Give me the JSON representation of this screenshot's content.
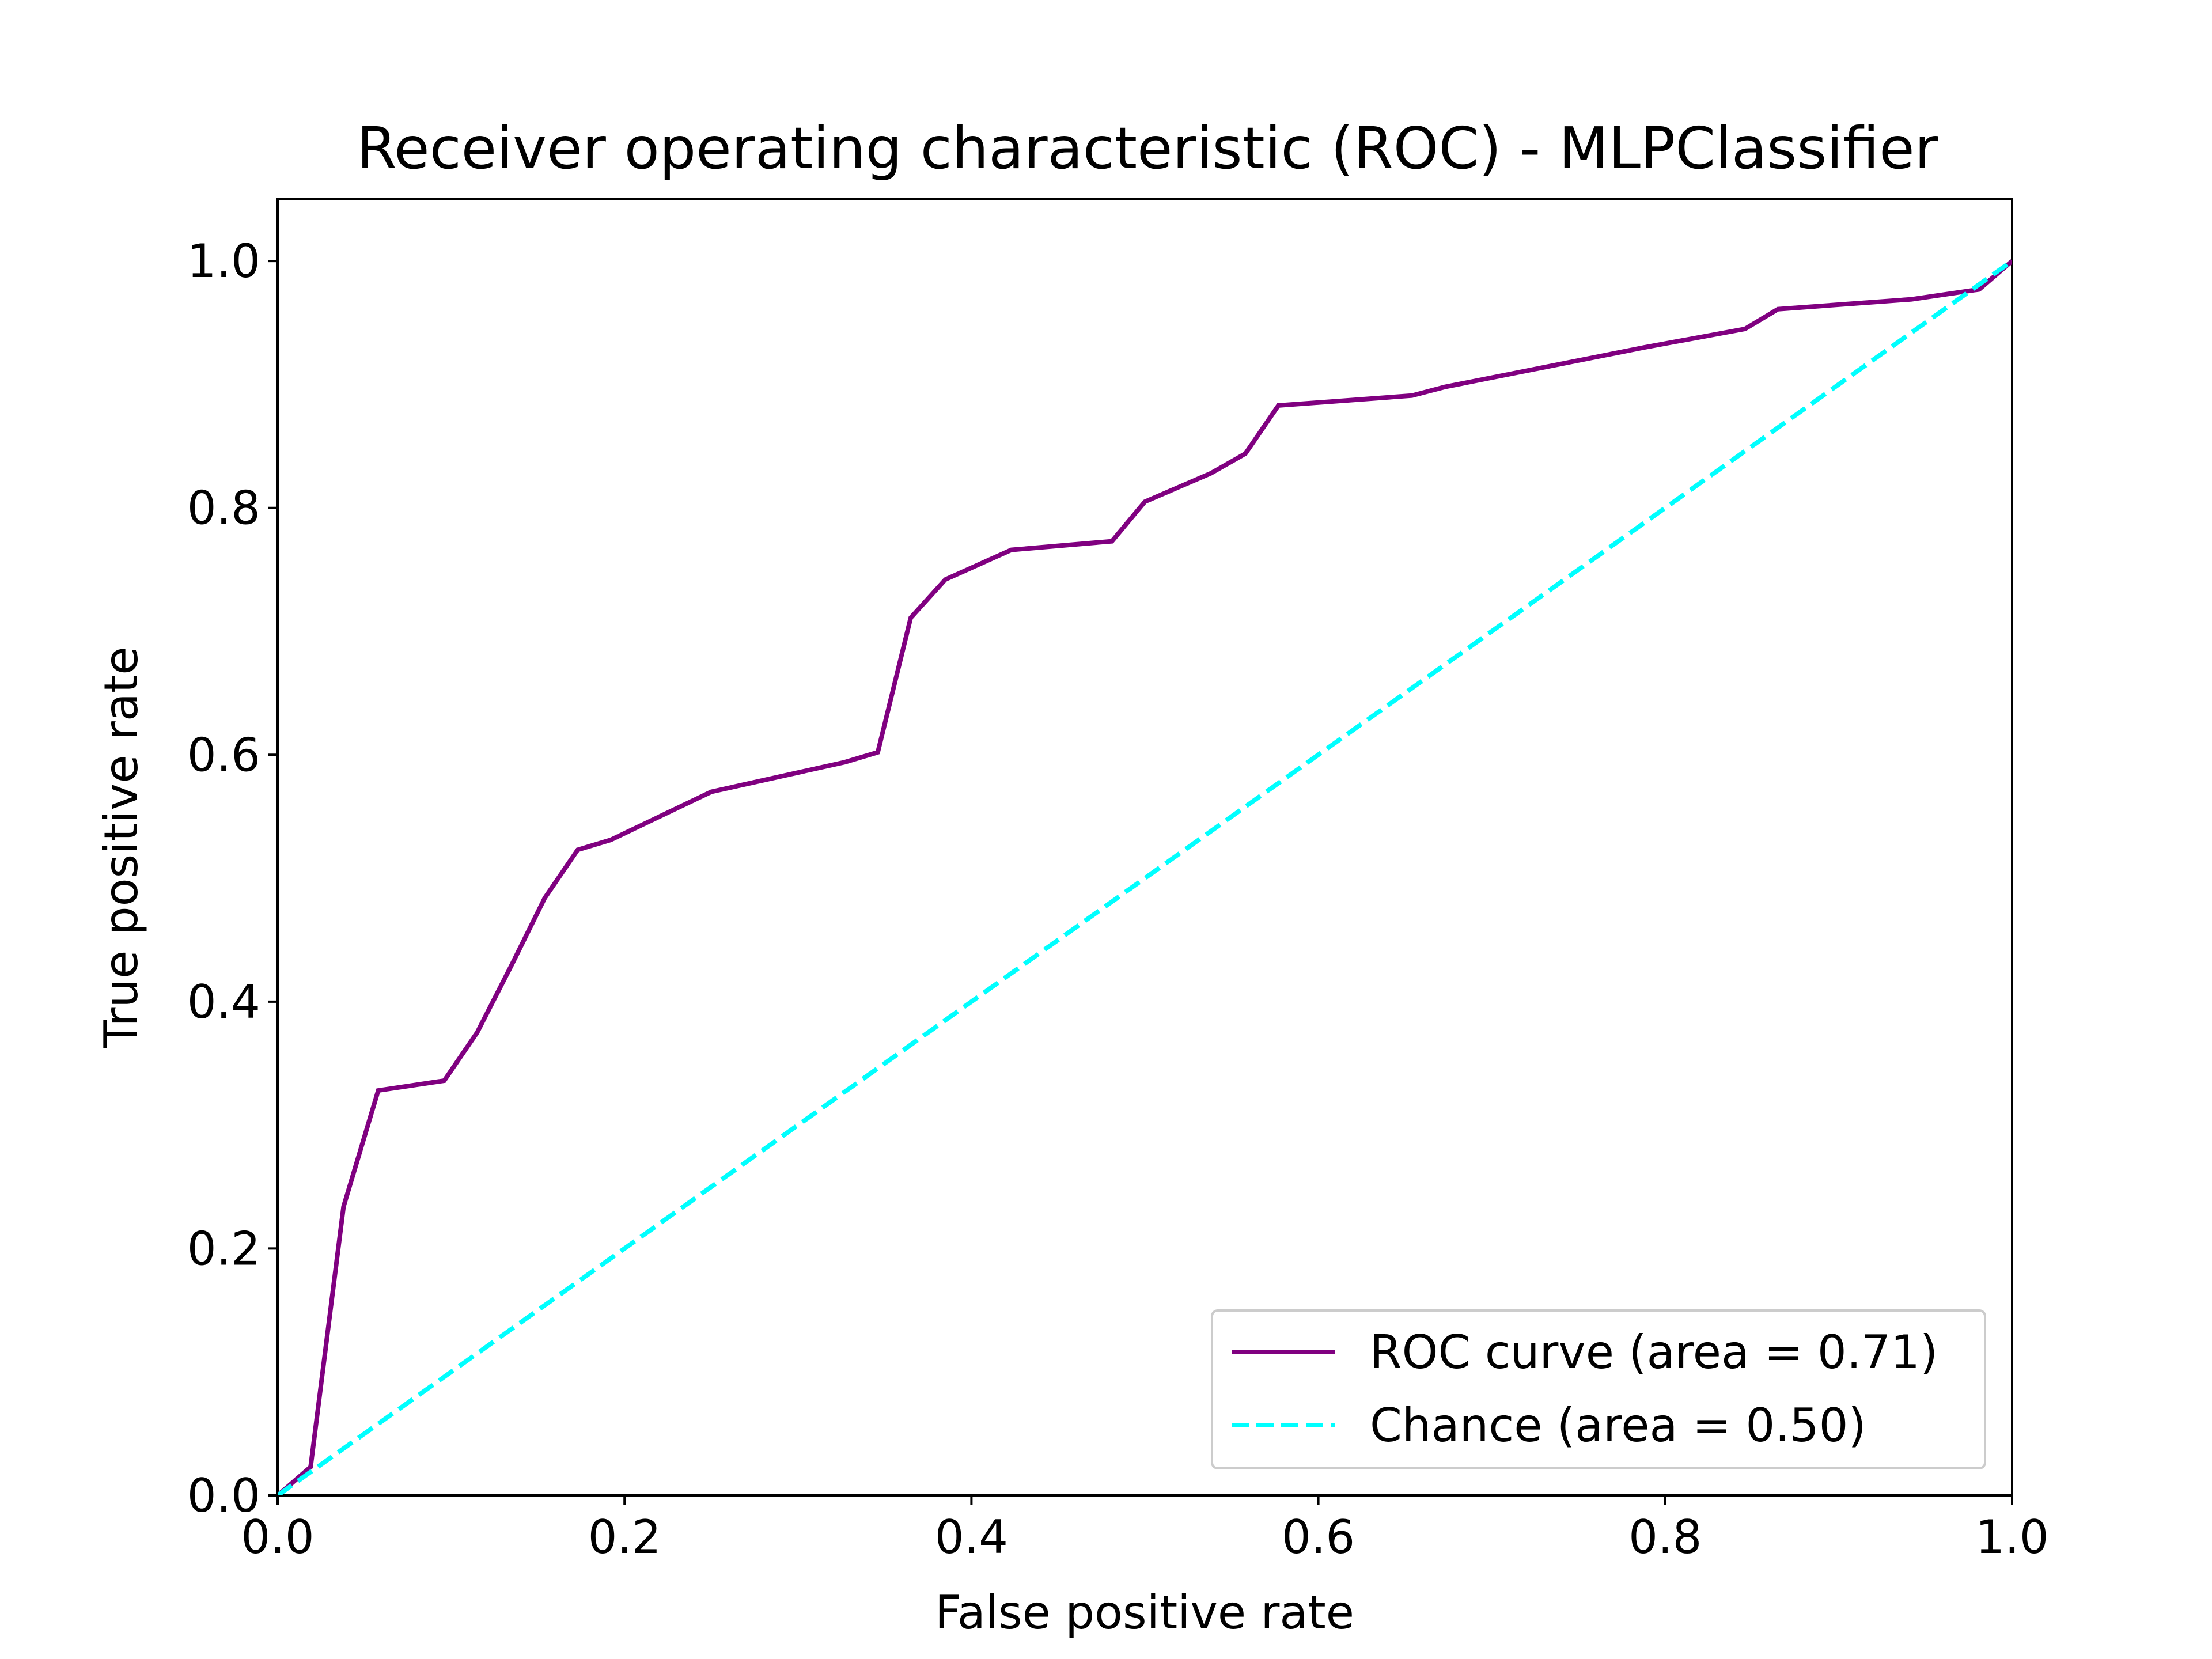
{
  "chart_data": {
    "type": "line",
    "title": "Receiver operating characteristic (ROC) - MLPClassifier",
    "xlabel": "False positive rate",
    "ylabel": "True positive rate",
    "xlim": [
      0.0,
      1.0
    ],
    "ylim": [
      0.0,
      1.05
    ],
    "xticks": [
      "0.0",
      "0.2",
      "0.4",
      "0.6",
      "0.8",
      "1.0"
    ],
    "yticks": [
      "0.0",
      "0.2",
      "0.4",
      "0.6",
      "0.8",
      "1.0"
    ],
    "grid": false,
    "legend_position": "lower right",
    "series": [
      {
        "name": "ROC curve (area = 0.71)",
        "color": "#800080",
        "line_style": "solid",
        "step": true,
        "x": [
          0.0,
          0.019,
          0.019,
          0.038,
          0.038,
          0.058,
          0.058,
          0.096,
          0.096,
          0.115,
          0.115,
          0.135,
          0.135,
          0.154,
          0.154,
          0.173,
          0.173,
          0.192,
          0.192,
          0.25,
          0.25,
          0.327,
          0.327,
          0.346,
          0.346,
          0.365,
          0.365,
          0.385,
          0.385,
          0.423,
          0.423,
          0.481,
          0.481,
          0.5,
          0.5,
          0.538,
          0.538,
          0.558,
          0.558,
          0.577,
          0.577,
          0.654,
          0.654,
          0.673,
          0.673,
          0.788,
          0.788,
          0.846,
          0.846,
          0.865,
          0.865,
          0.942,
          0.942,
          0.981,
          0.981,
          1.0
        ],
        "y": [
          0.0,
          0.023,
          0.023,
          0.234,
          0.234,
          0.328,
          0.328,
          0.336,
          0.336,
          0.375,
          0.375,
          0.43,
          0.43,
          0.484,
          0.484,
          0.523,
          0.523,
          0.531,
          0.531,
          0.57,
          0.57,
          0.594,
          0.594,
          0.602,
          0.602,
          0.711,
          0.711,
          0.742,
          0.742,
          0.766,
          0.766,
          0.773,
          0.773,
          0.805,
          0.805,
          0.828,
          0.828,
          0.844,
          0.844,
          0.883,
          0.883,
          0.891,
          0.891,
          0.898,
          0.898,
          0.93,
          0.93,
          0.945,
          0.945,
          0.961,
          0.961,
          0.969,
          0.969,
          0.977,
          0.977,
          1.0
        ]
      },
      {
        "name": "Chance (area = 0.50)",
        "color": "#00ffff",
        "line_style": "dashed",
        "x": [
          0.0,
          1.0
        ],
        "y": [
          0.0,
          1.0
        ]
      }
    ]
  }
}
